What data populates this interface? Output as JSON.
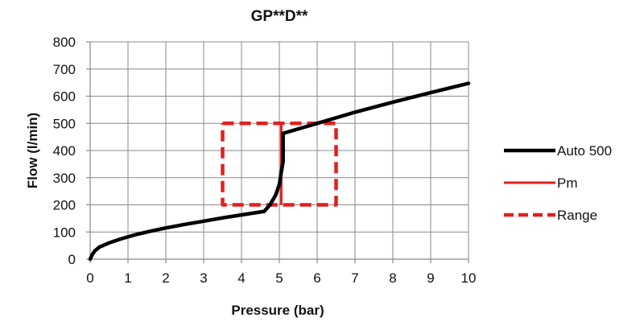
{
  "chart_data": {
    "type": "line",
    "title": "GP**D**",
    "xlabel": "Pressure (bar)",
    "ylabel": "Flow (l/min)",
    "xlim": [
      0,
      10
    ],
    "ylim": [
      0,
      800
    ],
    "xticks": [
      "0",
      "1",
      "2",
      "3",
      "4",
      "5",
      "6",
      "7",
      "8",
      "9",
      "10"
    ],
    "yticks": [
      "0",
      "100",
      "200",
      "300",
      "400",
      "500",
      "600",
      "700",
      "800"
    ],
    "grid": true,
    "legend_position": "right",
    "series": [
      {
        "name": "Auto 500",
        "color": "#000000",
        "style": "solid",
        "x": [
          0,
          0.05,
          0.12,
          0.25,
          0.5,
          0.8,
          1.2,
          1.6,
          2.0,
          2.5,
          3.0,
          3.5,
          4.0,
          4.6,
          4.75,
          4.9,
          5.0,
          5.05,
          5.1,
          5.1,
          6.0,
          7.0,
          8.0,
          9.0,
          10.0
        ],
        "y": [
          0,
          15,
          30,
          45,
          60,
          74,
          90,
          103,
          115,
          128,
          140,
          152,
          163,
          176,
          200,
          235,
          275,
          320,
          360,
          463,
          500,
          541,
          578,
          613,
          647
        ]
      },
      {
        "name": "Pm",
        "color": "#e02020",
        "style": "solid",
        "x": [
          5.05,
          5.05
        ],
        "y": [
          200,
          500
        ]
      },
      {
        "name": "Range",
        "color": "#e02020",
        "style": "dashed",
        "x": [
          3.5,
          6.5,
          6.5,
          3.5,
          3.5
        ],
        "y": [
          500,
          500,
          200,
          200,
          500
        ]
      }
    ]
  }
}
